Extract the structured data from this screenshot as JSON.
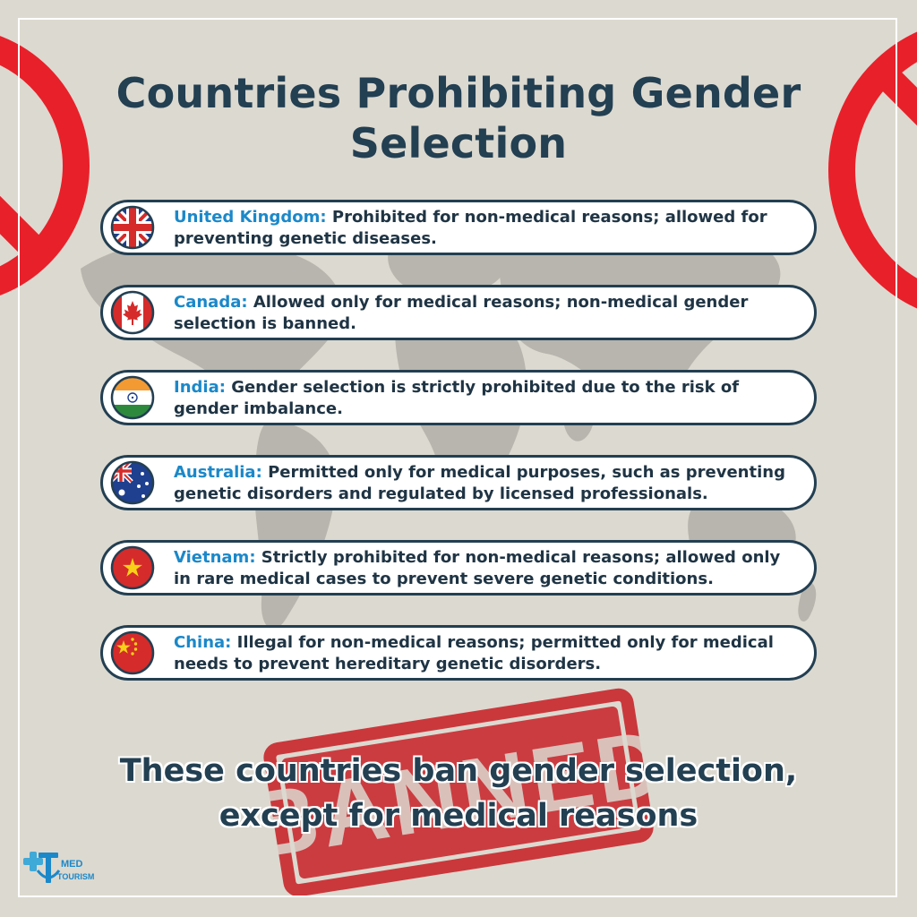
{
  "title": "Countries Prohibiting Gender Selection",
  "countries": [
    {
      "name": "United Kingdom:",
      "text": "Prohibited for non-medical reasons; allowed for preventing genetic diseases.",
      "flag": "uk-flag-icon"
    },
    {
      "name": "Canada:",
      "text": "Allowed only for medical reasons; non-medical gender selection is banned.",
      "flag": "canada-flag-icon"
    },
    {
      "name": "India:",
      "text": "Gender selection is strictly prohibited due to the risk of gender imbalance.",
      "flag": "india-flag-icon"
    },
    {
      "name": "Australia:",
      "text": "Permitted only for medical purposes, such as preventing genetic disorders and regulated by licensed professionals.",
      "flag": "australia-flag-icon"
    },
    {
      "name": "Vietnam:",
      "text": "Strictly prohibited for non-medical reasons; allowed only in rare medical cases to prevent severe genetic conditions.",
      "flag": "vietnam-flag-icon"
    },
    {
      "name": "China:",
      "text": "Illegal for non-medical reasons; permitted only for medical needs to prevent hereditary genetic disorders.",
      "flag": "china-flag-icon"
    }
  ],
  "stamp_text": "BANNED",
  "footer_line1": "These countries ban gender selection,",
  "footer_line2": "except for medical reasons",
  "logo": {
    "med": "MED",
    "tourism": "TOURISM"
  },
  "colors": {
    "title": "#233f52",
    "country_name": "#1b88c9",
    "prohibit_red": "#e8202a",
    "stamp_red": "#c8262b"
  }
}
